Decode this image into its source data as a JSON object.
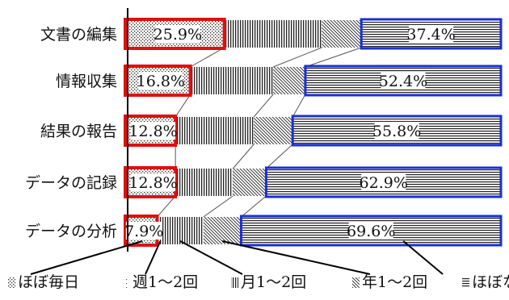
{
  "chart_data": {
    "type": "bar",
    "orientation": "horizontal",
    "stacked": true,
    "percent": true,
    "xlim": [
      0,
      100
    ],
    "categories": [
      "文書の編集",
      "情報収集",
      "結果の報告",
      "データの記録",
      "データの分析"
    ],
    "series": [
      {
        "name": "ほぼ毎日",
        "values": [
          25.9,
          16.8,
          12.8,
          12.8,
          7.9
        ],
        "pattern": "dots"
      },
      {
        "name": "週1～2回",
        "values": [
          0,
          0,
          0,
          0,
          0
        ],
        "pattern": "fine-dots"
      },
      {
        "name": "月1～2回",
        "values": [
          26.1,
          22.2,
          21.0,
          15.4,
          12.4
        ],
        "pattern": "vertical"
      },
      {
        "name": "年1～2回",
        "values": [
          10.6,
          8.6,
          10.4,
          8.9,
          10.1
        ],
        "pattern": "diagonal"
      },
      {
        "name": "ほぼない",
        "values": [
          37.4,
          52.4,
          55.8,
          62.9,
          69.6
        ],
        "pattern": "horizontal"
      }
    ],
    "data_labels": [
      [
        "25.9%",
        "37.4%"
      ],
      [
        "16.8%",
        "52.4%"
      ],
      [
        "12.8%",
        "55.8%"
      ],
      [
        "12.8%",
        "62.9%"
      ],
      [
        "7.9%",
        "69.6%"
      ]
    ],
    "highlight_colors": {
      "first": "#e01010",
      "last": "#1a2fd6"
    },
    "legend_position": "bottom",
    "grid": false
  }
}
